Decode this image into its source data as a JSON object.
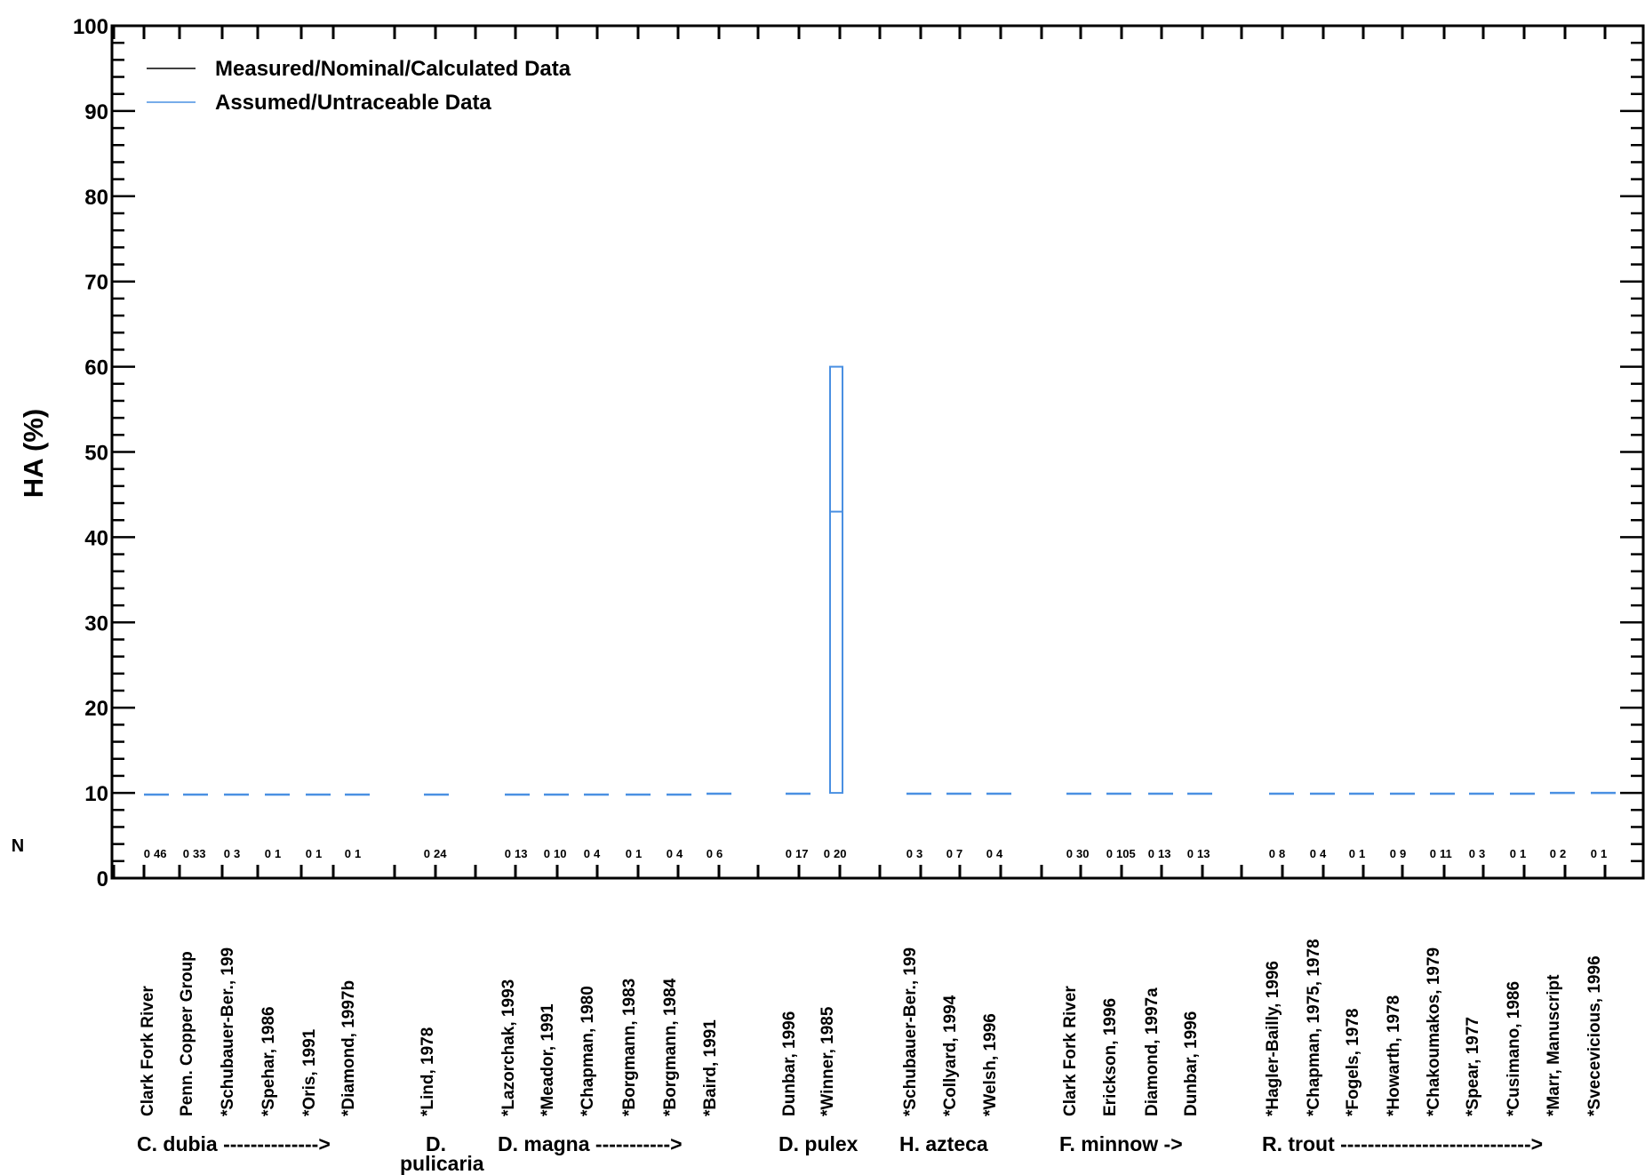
{
  "chart_data": {
    "type": "box",
    "ylabel": "HA (%)",
    "n_label": "N",
    "ylim": [
      0,
      100
    ],
    "yticks": [
      0,
      10,
      20,
      30,
      40,
      50,
      60,
      70,
      80,
      90,
      100
    ],
    "legend": {
      "placement": "top-left",
      "entries": [
        {
          "label": "Measured/Nominal/Calculated Data",
          "color": "#000000"
        },
        {
          "label": "Assumed/Untraceable Data",
          "color": "#4a90e2"
        }
      ]
    },
    "studies": [
      {
        "label": "Clark Fork River",
        "n0": "0",
        "n1": "46",
        "box": [
          9.8,
          9.8,
          9.8
        ]
      },
      {
        "label": "Penn. Copper Group",
        "n0": "0",
        "n1": "33",
        "box": [
          9.8,
          9.8,
          9.8
        ]
      },
      {
        "label": "*Schubauer-Ber., 199",
        "n0": "0",
        "n1": "3",
        "box": [
          9.8,
          9.8,
          9.8
        ]
      },
      {
        "label": "*Spehar, 1986",
        "n0": "0",
        "n1": "1",
        "box": [
          9.8,
          9.8,
          9.8
        ]
      },
      {
        "label": "*Oris, 1991",
        "n0": "0",
        "n1": "1",
        "box": [
          9.8,
          9.8,
          9.8
        ]
      },
      {
        "label": "*Diamond, 1997b",
        "n0": "0",
        "n1": "1",
        "box": [
          9.8,
          9.8,
          9.8
        ]
      },
      {
        "label": "*Lind, 1978",
        "n0": "0",
        "n1": "24",
        "box": [
          9.8,
          9.8,
          9.8
        ]
      },
      {
        "label": "*Lazorchak, 1993",
        "n0": "0",
        "n1": "13",
        "box": [
          9.8,
          9.8,
          9.8
        ]
      },
      {
        "label": "*Meador, 1991",
        "n0": "0",
        "n1": "10",
        "box": [
          9.8,
          9.8,
          9.8
        ]
      },
      {
        "label": "*Chapman, 1980",
        "n0": "0",
        "n1": "4",
        "box": [
          9.8,
          9.8,
          9.8
        ]
      },
      {
        "label": "*Borgmann, 1983",
        "n0": "0",
        "n1": "1",
        "box": [
          9.8,
          9.8,
          9.8
        ]
      },
      {
        "label": "*Borgmann, 1984",
        "n0": "0",
        "n1": "4",
        "box": [
          9.8,
          9.8,
          9.8
        ]
      },
      {
        "label": "*Baird, 1991",
        "n0": "0",
        "n1": "6",
        "box": [
          9.9,
          9.9,
          9.9
        ]
      },
      {
        "label": "Dunbar, 1996",
        "n0": "0",
        "n1": "17",
        "box": [
          9.9,
          9.9,
          9.9
        ]
      },
      {
        "label": "*Winner, 1985",
        "n0": "0",
        "n1": "20",
        "box": [
          10,
          43,
          60
        ]
      },
      {
        "label": "*Schubauer-Ber., 199",
        "n0": "0",
        "n1": "3",
        "box": [
          9.9,
          9.9,
          9.9
        ]
      },
      {
        "label": "*Collyard, 1994",
        "n0": "0",
        "n1": "7",
        "box": [
          9.9,
          9.9,
          9.9
        ]
      },
      {
        "label": "*Welsh, 1996",
        "n0": "0",
        "n1": "4",
        "box": [
          9.9,
          9.9,
          9.9
        ]
      },
      {
        "label": "Clark Fork River",
        "n0": "0",
        "n1": "30",
        "box": [
          9.9,
          9.9,
          9.9
        ]
      },
      {
        "label": "Erickson, 1996",
        "n0": "0",
        "n1": "105",
        "box": [
          9.9,
          9.9,
          9.9
        ]
      },
      {
        "label": "Diamond, 1997a",
        "n0": "0",
        "n1": "13",
        "box": [
          9.9,
          9.9,
          9.9
        ]
      },
      {
        "label": "Dunbar, 1996",
        "n0": "0",
        "n1": "13",
        "box": [
          9.9,
          9.9,
          9.9
        ]
      },
      {
        "label": "*Hagler-Bailly, 1996",
        "n0": "0",
        "n1": "8",
        "box": [
          9.9,
          9.9,
          9.9
        ]
      },
      {
        "label": "*Chapman, 1975, 1978",
        "n0": "0",
        "n1": "4",
        "box": [
          9.9,
          9.9,
          9.9
        ]
      },
      {
        "label": "*Fogels, 1978",
        "n0": "0",
        "n1": "1",
        "box": [
          9.9,
          9.9,
          9.9
        ]
      },
      {
        "label": "*Howarth, 1978",
        "n0": "0",
        "n1": "9",
        "box": [
          9.9,
          9.9,
          9.9
        ]
      },
      {
        "label": "*Chakoumakos, 1979",
        "n0": "0",
        "n1": "11",
        "box": [
          9.9,
          9.9,
          9.9
        ]
      },
      {
        "label": "*Spear, 1977",
        "n0": "0",
        "n1": "3",
        "box": [
          9.9,
          9.9,
          9.9
        ]
      },
      {
        "label": "*Cusimano, 1986",
        "n0": "0",
        "n1": "1",
        "box": [
          9.9,
          9.9,
          9.9
        ]
      },
      {
        "label": "*Marr, Manuscript",
        "n0": "0",
        "n1": "2",
        "box": [
          10,
          10,
          10
        ]
      },
      {
        "label": "*Svecevicious, 1996",
        "n0": "0",
        "n1": "1",
        "box": [
          10,
          10,
          10
        ]
      }
    ],
    "groups": [
      {
        "label": "C. dubia -------------->",
        "first": 0,
        "last": 5
      },
      {
        "label": "D. pulicaria",
        "first": 6,
        "last": 6
      },
      {
        "label": "D. magna ----------->",
        "first": 7,
        "last": 12
      },
      {
        "label": "D. pulex",
        "first": 13,
        "last": 14
      },
      {
        "label": "H. azteca",
        "first": 15,
        "last": 17
      },
      {
        "label": "F. minnow ->",
        "first": 18,
        "last": 21
      },
      {
        "label": "R. trout ---------------------------->",
        "first": 22,
        "last": 30
      }
    ]
  }
}
